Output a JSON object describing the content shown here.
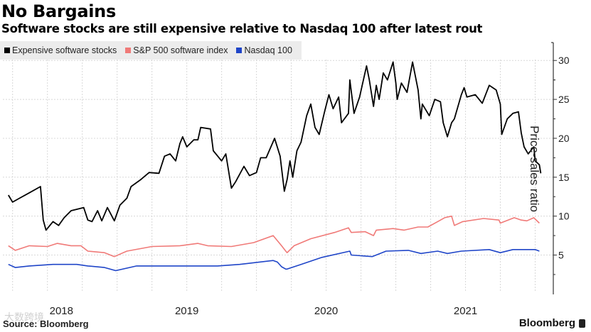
{
  "title": "No Bargains",
  "subtitle": "Software stocks are still expensive relative to Nasdaq 100 after latest rout",
  "source": "Source: Bloomberg",
  "brand": "Bloomberg",
  "watermark": "大数跨境",
  "chart_data": {
    "type": "line",
    "title": "No Bargains",
    "subtitle": "Software stocks are still expensive relative to Nasdaq 100 after latest rout",
    "xlabel": "",
    "ylabel": "Price-sales ratio",
    "xlim": [
      2018.18,
      2022.13
    ],
    "ylim": [
      0.4,
      32.3
    ],
    "grid": true,
    "legend_position": "top-left",
    "y_axis_side": "right",
    "xticks": [
      {
        "label": "2018",
        "at": 2018.6
      },
      {
        "label": "2019",
        "at": 2019.5
      },
      {
        "label": "2020",
        "at": 2020.5
      },
      {
        "label": "2021",
        "at": 2021.5
      }
    ],
    "yticks": [
      5,
      10,
      15,
      20,
      25,
      30
    ],
    "ytick_labels": [
      "5",
      "10",
      "15",
      "20",
      "25",
      "30"
    ],
    "series": [
      {
        "name": "Expensive software stocks",
        "color": "#000000",
        "x": [
          2018.22,
          2018.25,
          2018.3,
          2018.37,
          2018.45,
          2018.47,
          2018.49,
          2018.54,
          2018.58,
          2018.62,
          2018.67,
          2018.76,
          2018.79,
          2018.82,
          2018.86,
          2018.89,
          2018.93,
          2018.98,
          2019.02,
          2019.07,
          2019.1,
          2019.17,
          2019.23,
          2019.3,
          2019.34,
          2019.38,
          2019.42,
          2019.45,
          2019.47,
          2019.5,
          2019.55,
          2019.58,
          2019.6,
          2019.67,
          2019.69,
          2019.75,
          2019.78,
          2019.82,
          2019.85,
          2019.91,
          2019.95,
          2020.0,
          2020.03,
          2020.07,
          2020.13,
          2020.17,
          2020.2,
          2020.22,
          2020.24,
          2020.26,
          2020.29,
          2020.32,
          2020.36,
          2020.39,
          2020.42,
          2020.45,
          2020.49,
          2020.52,
          2020.55,
          2020.59,
          2020.61,
          2020.66,
          2020.67,
          2020.7,
          2020.74,
          2020.79,
          2020.81,
          2020.84,
          2020.86,
          2020.88,
          2020.91,
          2020.94,
          2020.98,
          2021.0,
          2021.01,
          2021.04,
          2021.08,
          2021.12,
          2021.14,
          2021.16,
          2021.18,
          2021.19,
          2021.24,
          2021.28,
          2021.32,
          2021.34,
          2021.37,
          2021.4,
          2021.42,
          2021.47,
          2021.49,
          2021.51,
          2021.57,
          2021.62,
          2021.67,
          2021.72,
          2021.75,
          2021.76,
          2021.8,
          2021.84,
          2021.88,
          2021.9,
          2021.92,
          2021.95,
          2021.99,
          2022.0,
          2022.03,
          2022.04
        ],
        "values": [
          12.7,
          11.8,
          12.3,
          13.0,
          13.8,
          9.5,
          8.2,
          9.3,
          8.8,
          9.8,
          10.7,
          11.1,
          9.5,
          9.3,
          10.7,
          9.4,
          11.1,
          9.4,
          11.4,
          12.3,
          13.8,
          14.7,
          15.6,
          15.5,
          17.7,
          18.0,
          17.1,
          19.3,
          20.2,
          18.9,
          19.8,
          19.8,
          21.4,
          21.2,
          18.4,
          17.1,
          18.0,
          13.6,
          14.4,
          16.4,
          15.2,
          15.6,
          17.5,
          17.5,
          20.0,
          17.7,
          13.2,
          14.7,
          17.1,
          15.0,
          18.4,
          19.5,
          22.9,
          24.4,
          21.4,
          20.5,
          23.5,
          25.6,
          23.8,
          25.3,
          22.0,
          23.2,
          27.5,
          23.2,
          25.3,
          29.3,
          27.5,
          24.1,
          26.8,
          25.0,
          28.4,
          27.5,
          29.8,
          27.1,
          25.0,
          27.1,
          25.9,
          29.8,
          28.0,
          26.2,
          22.5,
          24.4,
          22.9,
          25.0,
          24.7,
          22.0,
          20.2,
          22.0,
          22.5,
          25.6,
          26.5,
          25.3,
          25.6,
          24.5,
          26.8,
          26.2,
          24.4,
          20.5,
          22.5,
          23.2,
          23.4,
          20.7,
          18.9,
          18.0,
          18.9,
          17.1,
          16.6,
          15.5
        ]
      },
      {
        "name": "S&P 500 software index",
        "color": "#f07a78",
        "x": [
          2018.22,
          2018.27,
          2018.37,
          2018.5,
          2018.57,
          2018.67,
          2018.74,
          2018.79,
          2018.91,
          2018.98,
          2019.07,
          2019.25,
          2019.45,
          2019.58,
          2019.65,
          2019.82,
          2019.98,
          2020.12,
          2020.18,
          2020.21,
          2020.22,
          2020.27,
          2020.39,
          2020.56,
          2020.66,
          2020.68,
          2020.78,
          2020.84,
          2020.86,
          2020.98,
          2021.06,
          2021.16,
          2021.23,
          2021.3,
          2021.35,
          2021.4,
          2021.42,
          2021.48,
          2021.63,
          2021.74,
          2021.75,
          2021.85,
          2021.9,
          2021.94,
          2021.99,
          2022.03
        ],
        "values": [
          6.2,
          5.6,
          6.2,
          6.1,
          6.5,
          6.2,
          6.2,
          5.5,
          5.3,
          4.8,
          5.5,
          6.1,
          6.2,
          6.5,
          6.2,
          6.1,
          6.6,
          7.5,
          6.2,
          5.5,
          5.3,
          6.2,
          7.1,
          7.9,
          8.5,
          7.9,
          8.0,
          7.5,
          8.2,
          8.4,
          8.2,
          8.6,
          8.6,
          9.3,
          9.8,
          10.0,
          8.8,
          9.3,
          9.7,
          9.5,
          9.1,
          9.8,
          9.5,
          9.4,
          9.8,
          9.1
        ]
      },
      {
        "name": "Nasdaq 100",
        "color": "#1f45c8",
        "x": [
          2018.22,
          2018.27,
          2018.37,
          2018.54,
          2018.71,
          2018.79,
          2018.91,
          2018.99,
          2019.14,
          2019.38,
          2019.55,
          2019.72,
          2019.88,
          2020.12,
          2020.15,
          2020.18,
          2020.21,
          2020.22,
          2020.32,
          2020.47,
          2020.67,
          2020.68,
          2020.83,
          2020.93,
          2021.09,
          2021.18,
          2021.3,
          2021.37,
          2021.47,
          2021.67,
          2021.75,
          2021.84,
          2021.9,
          2022.0,
          2022.03
        ],
        "values": [
          3.8,
          3.4,
          3.6,
          3.8,
          3.8,
          3.6,
          3.4,
          3.0,
          3.6,
          3.6,
          3.6,
          3.6,
          3.8,
          4.3,
          4.1,
          3.5,
          3.2,
          3.2,
          3.8,
          4.7,
          5.5,
          5.0,
          4.8,
          5.5,
          5.6,
          5.2,
          5.5,
          5.2,
          5.5,
          5.7,
          5.3,
          5.7,
          5.7,
          5.7,
          5.5
        ]
      }
    ]
  }
}
